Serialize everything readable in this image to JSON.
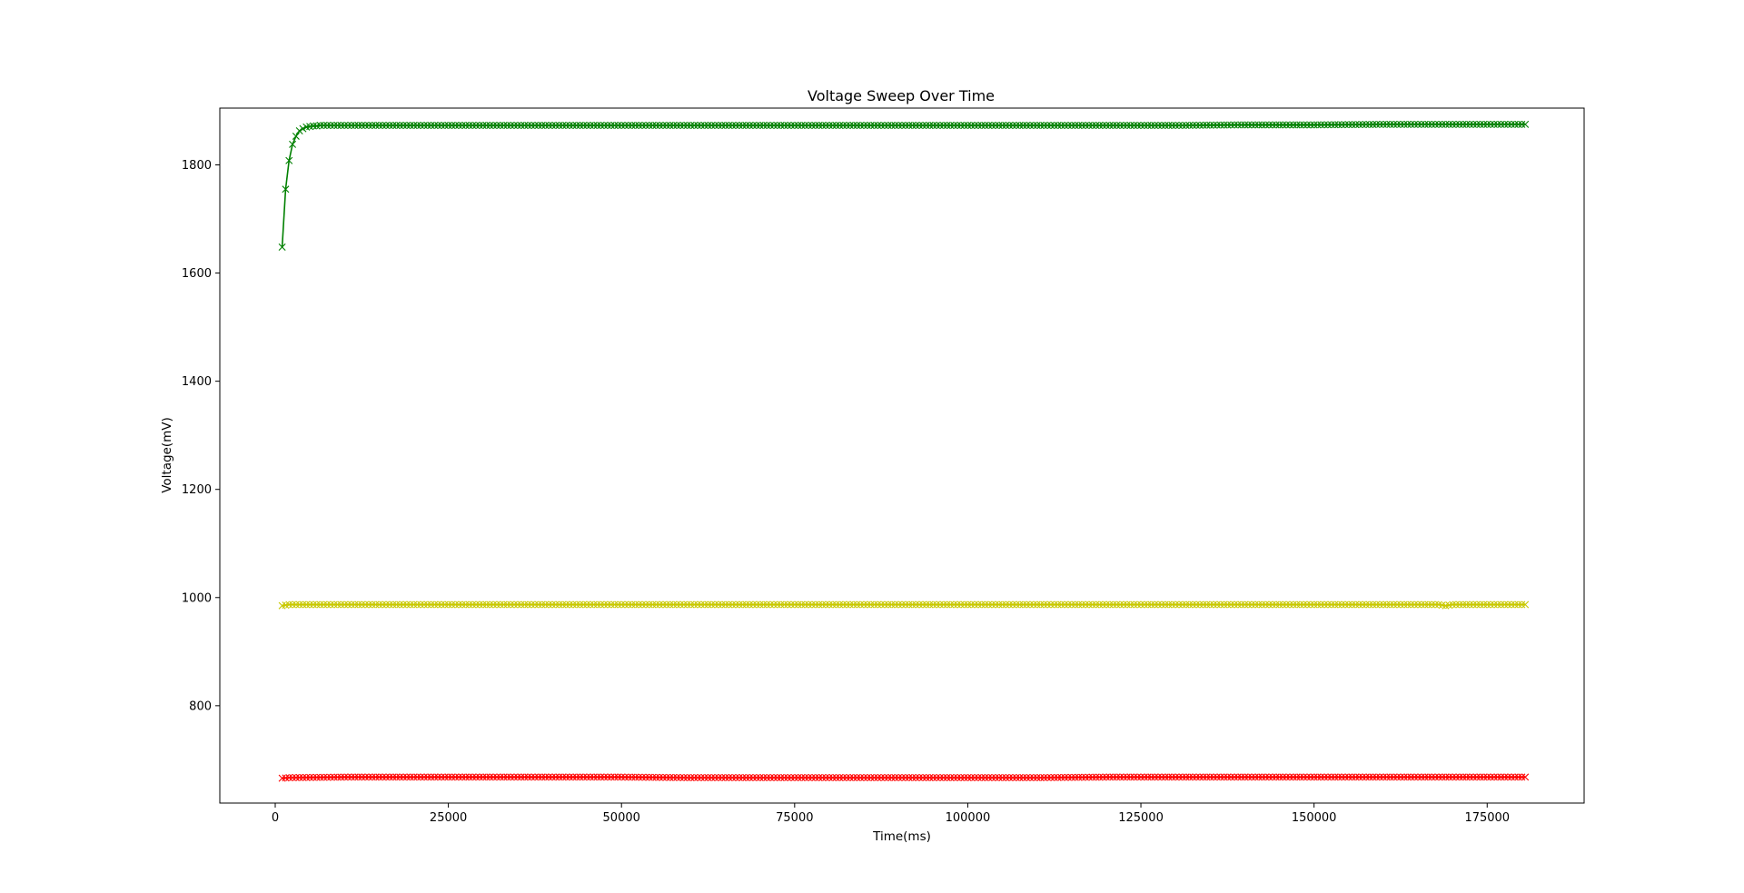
{
  "chart_data": {
    "type": "line",
    "title": "Voltage Sweep Over Time",
    "xlabel": "Time(ms)",
    "ylabel": "Voltage(mV)",
    "xlim": [
      -8000,
      189000
    ],
    "ylim": [
      620,
      1905
    ],
    "xticks": [
      0,
      25000,
      50000,
      75000,
      100000,
      125000,
      150000,
      175000
    ],
    "xtick_labels": [
      "0",
      "25000",
      "50000",
      "75000",
      "100000",
      "125000",
      "150000",
      "175000"
    ],
    "yticks": [
      800,
      1000,
      1200,
      1400,
      1600,
      1800
    ],
    "ytick_labels": [
      "800",
      "1000",
      "1200",
      "1400",
      "1600",
      "1800"
    ],
    "grid": false,
    "marker": "x",
    "series": [
      {
        "color": "#008000",
        "x": [
          1000,
          1500,
          2000,
          2500,
          3000,
          3500,
          4000,
          4500,
          5000,
          5500,
          6000,
          6500,
          7000,
          8000,
          10000,
          15000,
          20000,
          30000,
          40000,
          50000,
          60000,
          70000,
          80000,
          90000,
          100000,
          110000,
          120000,
          130000,
          140000,
          150000,
          160000,
          170000,
          180500
        ],
        "y": [
          1648,
          1755,
          1808,
          1838,
          1853,
          1863,
          1867,
          1870,
          1871,
          1872,
          1872,
          1873,
          1873,
          1873,
          1873,
          1873,
          1873,
          1873,
          1873,
          1873,
          1873,
          1873,
          1873,
          1873,
          1873,
          1873,
          1873,
          1873,
          1874,
          1874,
          1875,
          1875,
          1875
        ]
      },
      {
        "color": "#c8c800",
        "x": [
          1000,
          2000,
          10000,
          30000,
          50000,
          70000,
          90000,
          110000,
          130000,
          150000,
          168000,
          169000,
          170000,
          180500
        ],
        "y": [
          985,
          987,
          987,
          987,
          987,
          987,
          987,
          987,
          987,
          987,
          987,
          985,
          987,
          987
        ]
      },
      {
        "color": "#ff0000",
        "x": [
          1000,
          2000,
          10000,
          30000,
          50000,
          60000,
          70000,
          80000,
          90000,
          100000,
          110000,
          120000,
          130000,
          150000,
          170000,
          180500
        ],
        "y": [
          666,
          667,
          668,
          668,
          668,
          667,
          667,
          667,
          667,
          667,
          667,
          668,
          668,
          668,
          668,
          668
        ]
      }
    ]
  }
}
